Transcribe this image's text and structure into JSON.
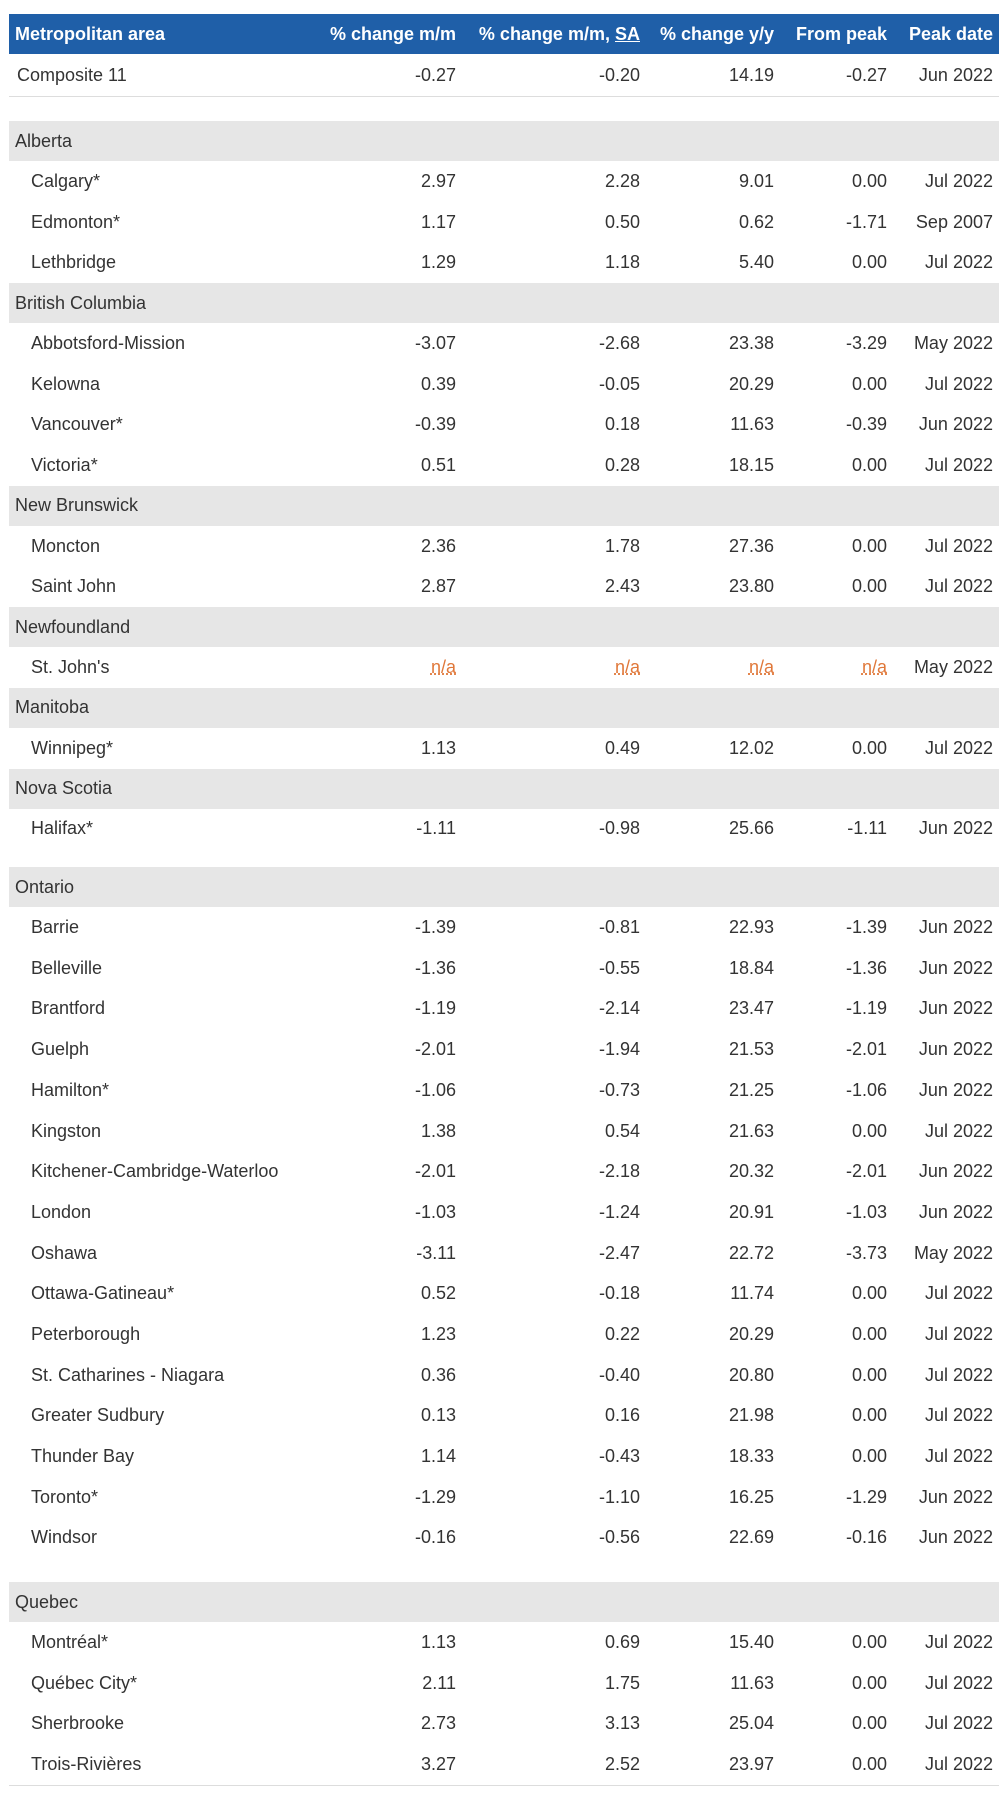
{
  "headers": [
    "Metropolitan area",
    "% change m/m",
    "% change m/m,",
    "SA",
    "% change y/y",
    "From peak",
    "Peak date"
  ],
  "composite": {
    "name": "Composite 11",
    "m": "-0.27",
    "sa": "-0.20",
    "y": "14.19",
    "fp": "-0.27",
    "pd": "Jun 2022"
  },
  "provinces": [
    {
      "name": "Alberta",
      "cities": [
        {
          "name": "Calgary*",
          "m": "2.97",
          "sa": "2.28",
          "y": "9.01",
          "fp": "0.00",
          "pd": "Jul 2022"
        },
        {
          "name": "Edmonton*",
          "m": "1.17",
          "sa": "0.50",
          "y": "0.62",
          "fp": "-1.71",
          "pd": "Sep 2007"
        },
        {
          "name": "Lethbridge",
          "m": "1.29",
          "sa": "1.18",
          "y": "5.40",
          "fp": "0.00",
          "pd": "Jul 2022"
        }
      ]
    },
    {
      "name": "British Columbia",
      "cities": [
        {
          "name": "Abbotsford-Mission",
          "m": "-3.07",
          "sa": "-2.68",
          "y": "23.38",
          "fp": "-3.29",
          "pd": "May 2022"
        },
        {
          "name": "Kelowna",
          "m": "0.39",
          "sa": "-0.05",
          "y": "20.29",
          "fp": "0.00",
          "pd": "Jul 2022"
        },
        {
          "name": "Vancouver*",
          "m": "-0.39",
          "sa": "0.18",
          "y": "11.63",
          "fp": "-0.39",
          "pd": "Jun 2022"
        },
        {
          "name": "Victoria*",
          "m": "0.51",
          "sa": "0.28",
          "y": "18.15",
          "fp": "0.00",
          "pd": "Jul 2022"
        }
      ]
    },
    {
      "name": "New Brunswick",
      "cities": [
        {
          "name": "Moncton",
          "m": "2.36",
          "sa": "1.78",
          "y": "27.36",
          "fp": "0.00",
          "pd": "Jul 2022"
        },
        {
          "name": "Saint John",
          "m": "2.87",
          "sa": "2.43",
          "y": "23.80",
          "fp": "0.00",
          "pd": "Jul 2022"
        }
      ]
    },
    {
      "name": "Newfoundland",
      "cities": [
        {
          "name": "St. John's",
          "m": "n/a",
          "sa": "n/a",
          "y": "n/a",
          "fp": "n/a",
          "pd": "May 2022"
        }
      ]
    },
    {
      "name": "Manitoba",
      "cities": [
        {
          "name": "Winnipeg*",
          "m": "1.13",
          "sa": "0.49",
          "y": "12.02",
          "fp": "0.00",
          "pd": "Jul 2022"
        }
      ]
    },
    {
      "name": "Nova Scotia",
      "cities": [
        {
          "name": "Halifax*",
          "m": "-1.11",
          "sa": "-0.98",
          "y": "25.66",
          "fp": "-1.11",
          "pd": "Jun 2022"
        }
      ]
    },
    {
      "name": "Ontario",
      "cities": [
        {
          "name": "Barrie",
          "m": "-1.39",
          "sa": "-0.81",
          "y": "22.93",
          "fp": "-1.39",
          "pd": "Jun 2022"
        },
        {
          "name": "Belleville",
          "m": "-1.36",
          "sa": "-0.55",
          "y": "18.84",
          "fp": "-1.36",
          "pd": "Jun 2022"
        },
        {
          "name": "Brantford",
          "m": "-1.19",
          "sa": "-2.14",
          "y": "23.47",
          "fp": "-1.19",
          "pd": "Jun 2022"
        },
        {
          "name": "Guelph",
          "m": "-2.01",
          "sa": "-1.94",
          "y": "21.53",
          "fp": "-2.01",
          "pd": "Jun 2022"
        },
        {
          "name": "Hamilton*",
          "m": "-1.06",
          "sa": "-0.73",
          "y": "21.25",
          "fp": "-1.06",
          "pd": "Jun 2022"
        },
        {
          "name": "Kingston",
          "m": "1.38",
          "sa": "0.54",
          "y": "21.63",
          "fp": "0.00",
          "pd": "Jul 2022"
        },
        {
          "name": "Kitchener-Cambridge-Waterloo",
          "m": "-2.01",
          "sa": "-2.18",
          "y": "20.32",
          "fp": "-2.01",
          "pd": "Jun 2022"
        },
        {
          "name": "London",
          "m": "-1.03",
          "sa": "-1.24",
          "y": "20.91",
          "fp": "-1.03",
          "pd": "Jun 2022"
        },
        {
          "name": "Oshawa",
          "m": "-3.11",
          "sa": "-2.47",
          "y": "22.72",
          "fp": "-3.73",
          "pd": "May 2022"
        },
        {
          "name": "Ottawa-Gatineau*",
          "m": "0.52",
          "sa": "-0.18",
          "y": "11.74",
          "fp": "0.00",
          "pd": "Jul 2022"
        },
        {
          "name": "Peterborough",
          "m": "1.23",
          "sa": "0.22",
          "y": "20.29",
          "fp": "0.00",
          "pd": "Jul 2022"
        },
        {
          "name": "St. Catharines - Niagara",
          "m": "0.36",
          "sa": "-0.40",
          "y": "20.80",
          "fp": "0.00",
          "pd": "Jul 2022"
        },
        {
          "name": "Greater Sudbury",
          "m": "0.13",
          "sa": "0.16",
          "y": "21.98",
          "fp": "0.00",
          "pd": "Jul 2022"
        },
        {
          "name": "Thunder Bay",
          "m": "1.14",
          "sa": "-0.43",
          "y": "18.33",
          "fp": "0.00",
          "pd": "Jul 2022"
        },
        {
          "name": "Toronto*",
          "m": "-1.29",
          "sa": "-1.10",
          "y": "16.25",
          "fp": "-1.29",
          "pd": "Jun 2022"
        },
        {
          "name": "Windsor",
          "m": "-0.16",
          "sa": "-0.56",
          "y": "22.69",
          "fp": "-0.16",
          "pd": "Jun 2022"
        }
      ]
    },
    {
      "name": "Quebec",
      "cities": [
        {
          "name": "Montréal*",
          "m": "1.13",
          "sa": "0.69",
          "y": "15.40",
          "fp": "0.00",
          "pd": "Jul 2022"
        },
        {
          "name": "Québec City*",
          "m": "2.11",
          "sa": "1.75",
          "y": "11.63",
          "fp": "0.00",
          "pd": "Jul 2022"
        },
        {
          "name": "Sherbrooke",
          "m": "2.73",
          "sa": "3.13",
          "y": "25.04",
          "fp": "0.00",
          "pd": "Jul 2022"
        },
        {
          "name": "Trois-Rivières",
          "m": "3.27",
          "sa": "2.52",
          "y": "23.97",
          "fp": "0.00",
          "pd": "Jul 2022"
        }
      ]
    }
  ]
}
